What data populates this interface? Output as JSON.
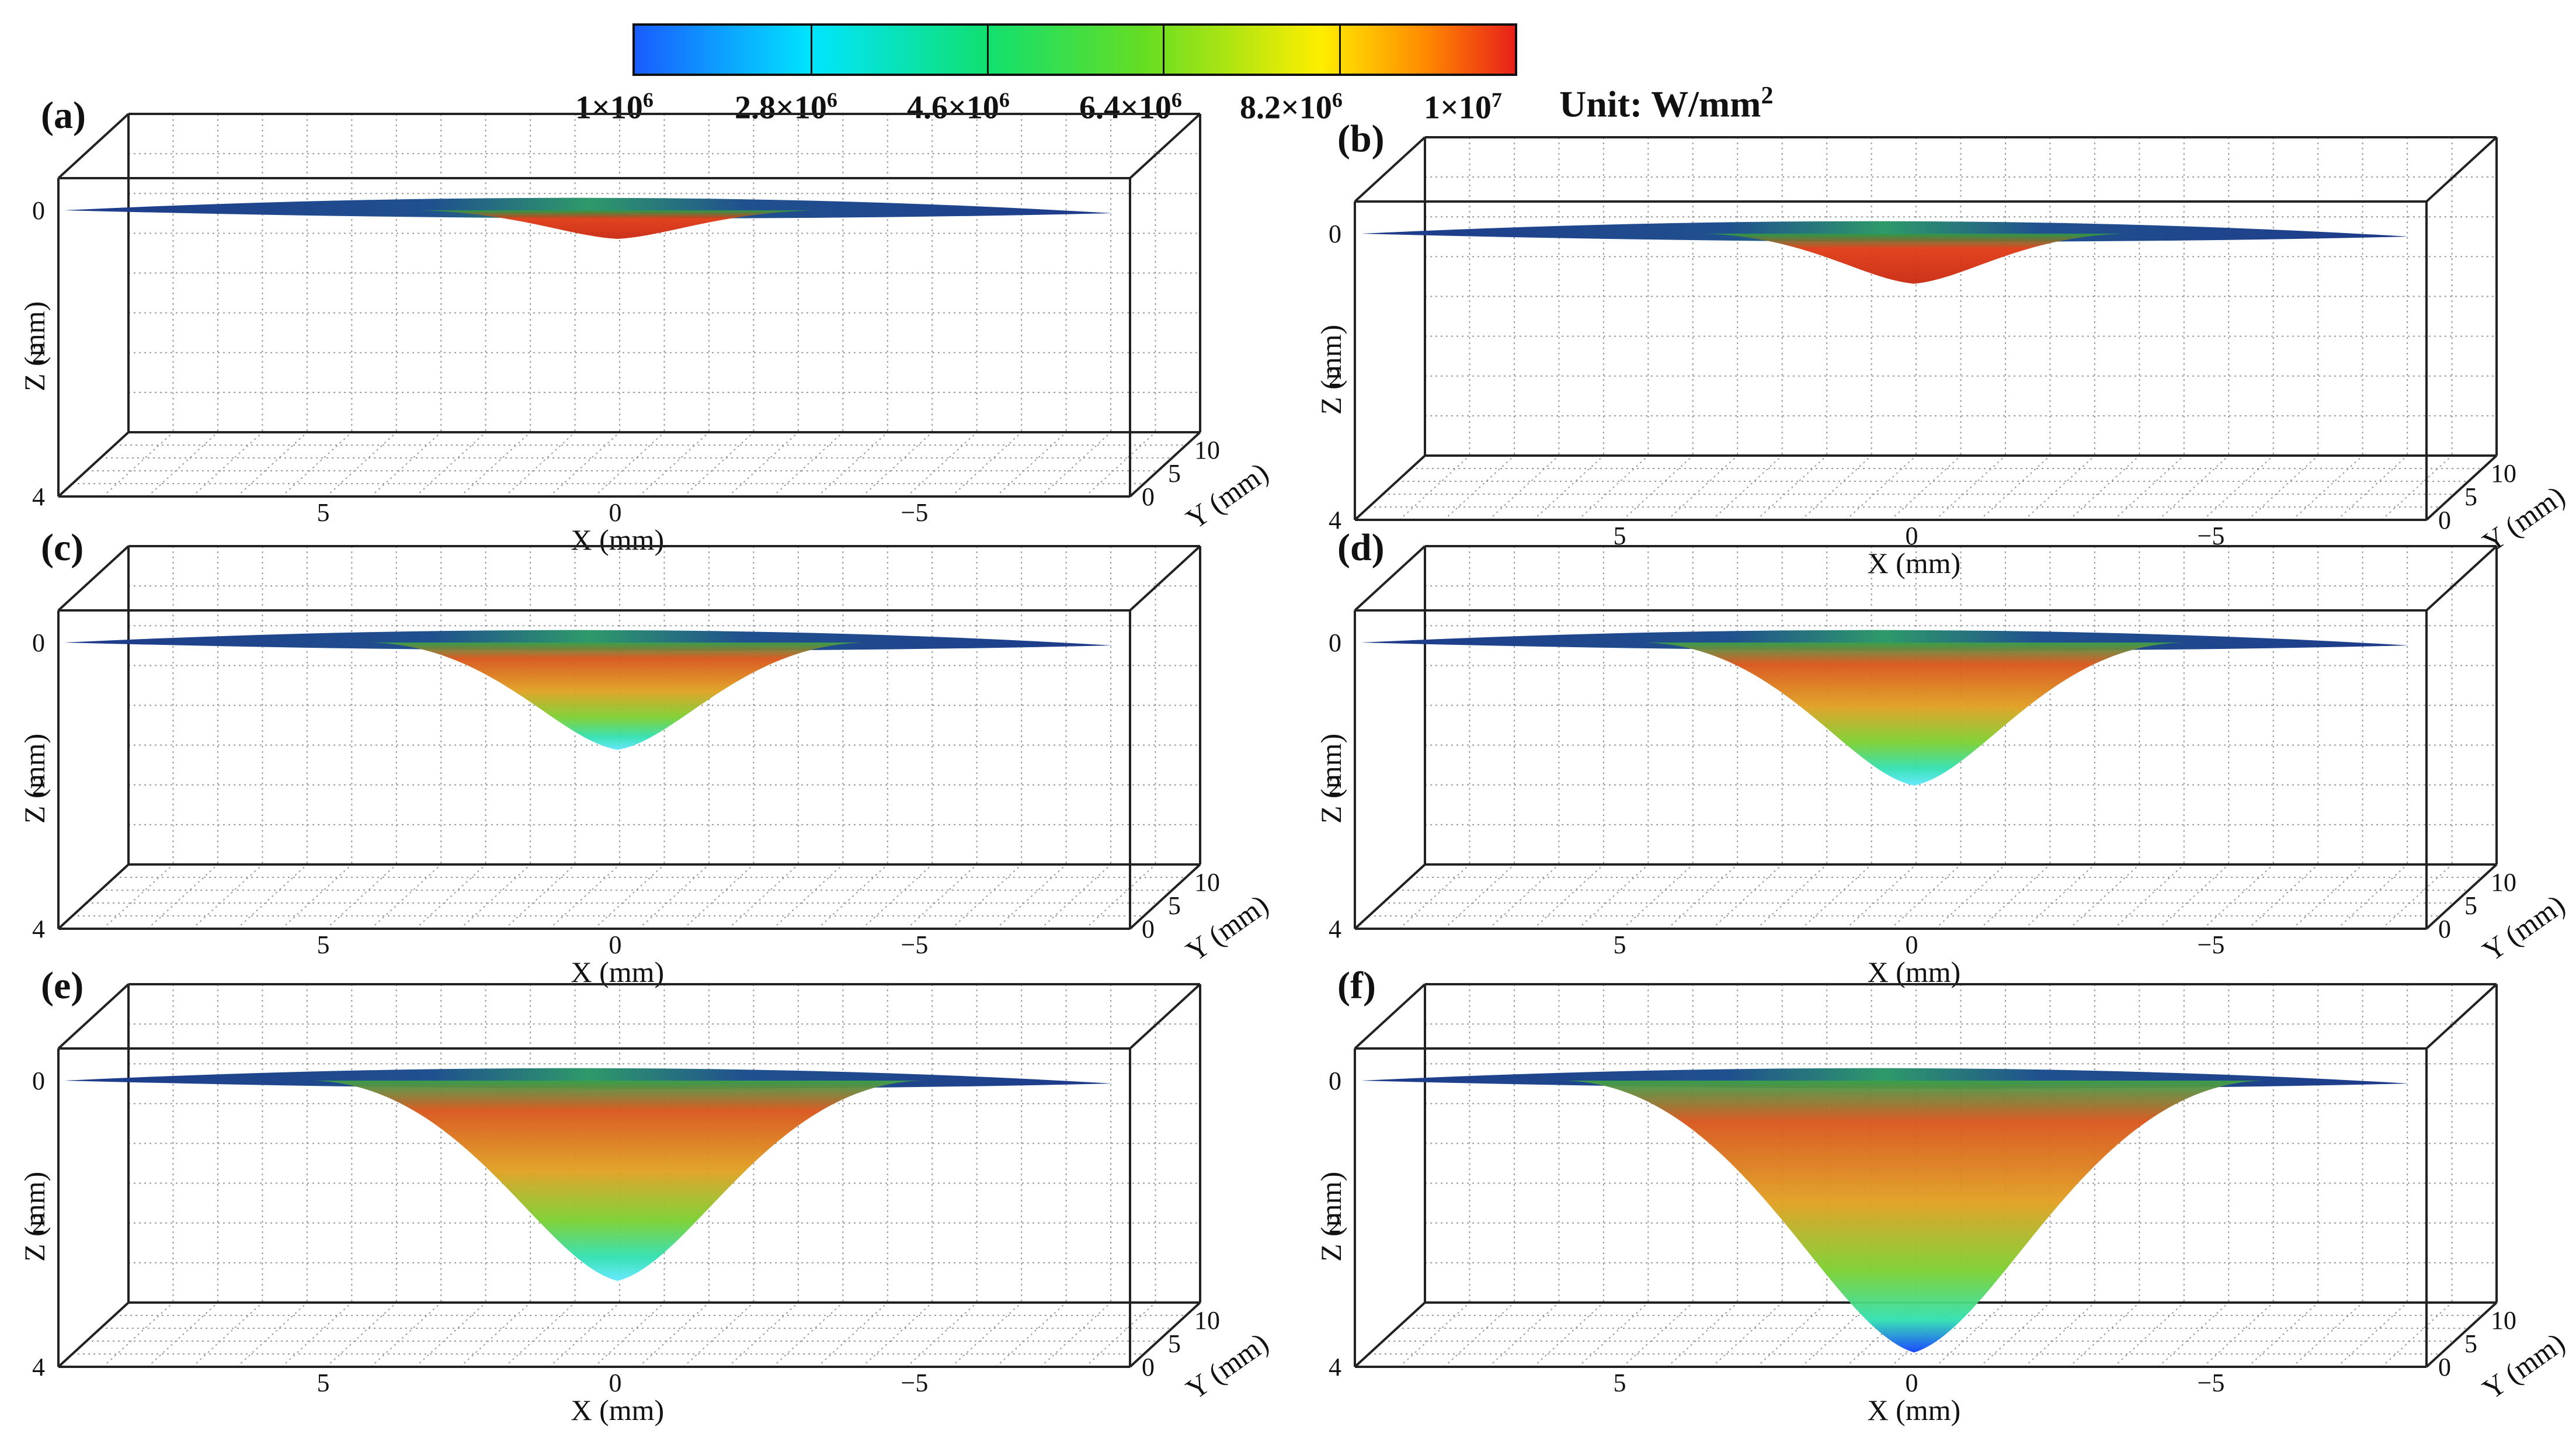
{
  "colorbar": {
    "labels": [
      "1×10",
      "2.8×10",
      "4.6×10",
      "6.4×10",
      "8.2×10",
      "1×10"
    ],
    "exponents": [
      "6",
      "6",
      "6",
      "6",
      "6",
      "7"
    ],
    "unit_text": "Unit: W/mm",
    "unit_exp": "2",
    "colors": [
      "#1a5cff",
      "#00e5ff",
      "#10e070",
      "#66dd22",
      "#ffee00",
      "#ff8800",
      "#e8201a"
    ]
  },
  "axes": {
    "x_label": "X (mm)",
    "y_label": "Y (mm)",
    "z_label": "Z (mm)",
    "x_ticks": [
      "5",
      "0",
      "−5"
    ],
    "z_ticks": [
      "0",
      "2",
      "4"
    ],
    "y_ticks": [
      "0",
      "5",
      "10"
    ]
  },
  "panels": [
    {
      "label": "(a)",
      "depth": 0.4
    },
    {
      "label": "(b)",
      "depth": 0.7
    },
    {
      "label": "(c)",
      "depth": 1.5
    },
    {
      "label": "(d)",
      "depth": 2.0
    },
    {
      "label": "(e)",
      "depth": 2.8
    },
    {
      "label": "(f)",
      "depth": 3.8
    }
  ]
}
